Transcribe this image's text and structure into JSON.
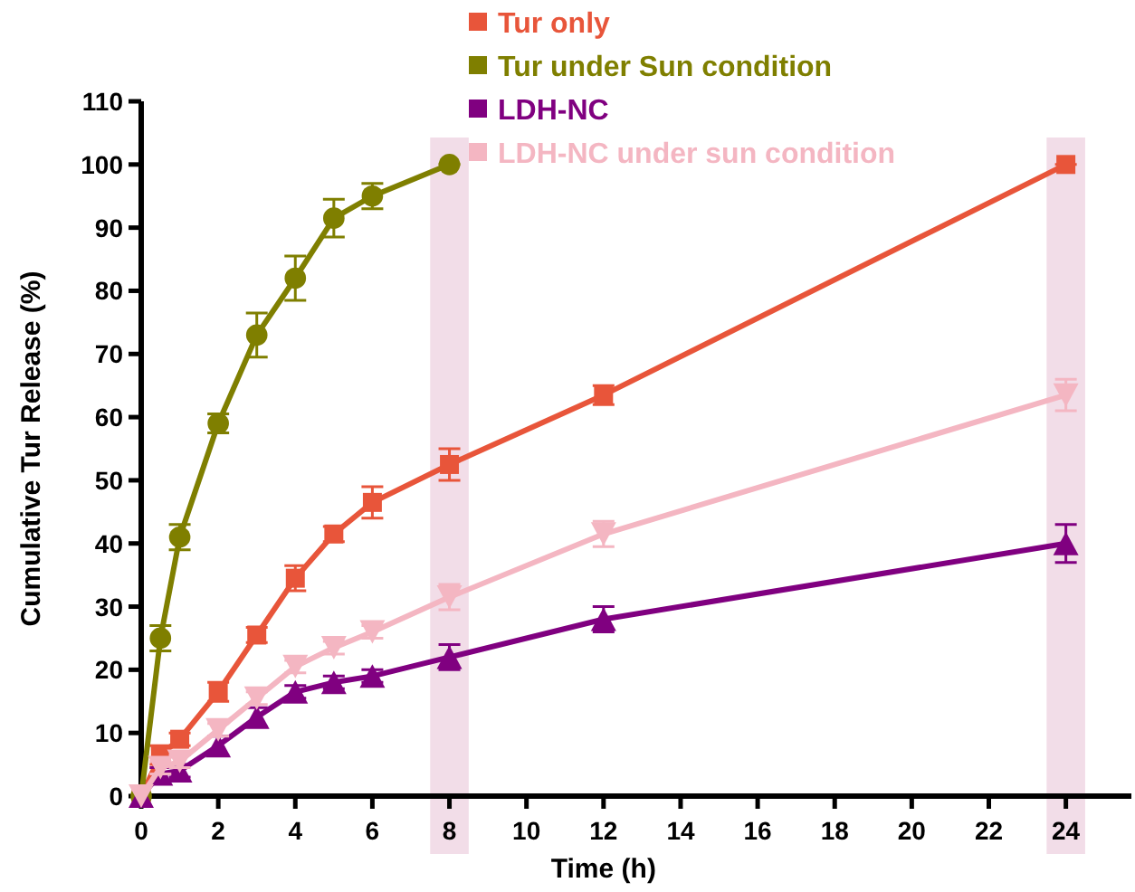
{
  "chart_data": {
    "type": "line",
    "xlabel": "Time (h)",
    "ylabel": "Cumulative Tur Release (%)",
    "xlim": [
      0,
      25.7
    ],
    "xticks": [
      0,
      2,
      4,
      6,
      8,
      10,
      12,
      14,
      16,
      18,
      20,
      22,
      24
    ],
    "ylim": [
      0,
      110
    ],
    "yticks": [
      0,
      10,
      20,
      30,
      40,
      50,
      60,
      70,
      80,
      90,
      100,
      110
    ],
    "grid": false,
    "legend": "top right",
    "line_style": "solid",
    "bands": [
      {
        "axis": "x",
        "from": 7.5,
        "to": 8.5,
        "color": "#f2dde8"
      },
      {
        "axis": "x",
        "from": 23.5,
        "to": 24.5,
        "color": "#f2dde8"
      }
    ],
    "series": [
      {
        "name": "Tur only",
        "color": "#e8553a",
        "marker": "square",
        "x": [
          0,
          0.5,
          1,
          2,
          3,
          4,
          5,
          6,
          8,
          12,
          24
        ],
        "values": [
          0,
          6.5,
          9,
          16.5,
          25.5,
          34.5,
          41.5,
          46.5,
          52.5,
          63.5,
          100
        ],
        "errors": [
          null,
          1.5,
          1,
          1.5,
          1.2,
          2,
          1.2,
          2.5,
          2.5,
          1.5,
          0
        ]
      },
      {
        "name": "Tur under Sun condition",
        "color": "#7f7f00",
        "marker": "circle",
        "x": [
          0,
          0.5,
          1,
          2,
          3,
          4,
          5,
          6,
          8
        ],
        "values": [
          0,
          25,
          41,
          59,
          73,
          82,
          91.5,
          95,
          100
        ],
        "errors": [
          null,
          2,
          2,
          1.5,
          3.5,
          3.5,
          3,
          2,
          0
        ]
      },
      {
        "name": "LDH-NC",
        "color": "#800080",
        "marker": "triangle",
        "x": [
          0,
          0.5,
          1,
          2,
          3,
          4,
          5,
          6,
          8,
          12,
          24
        ],
        "values": [
          0,
          3.5,
          4,
          8,
          12.5,
          16.5,
          18,
          19,
          22,
          28,
          40
        ],
        "errors": [
          null,
          1,
          1,
          1.5,
          1.5,
          1,
          1,
          1,
          2,
          2,
          3
        ]
      },
      {
        "name": "LDH-NC under sun condition",
        "color": "#f4b6c2",
        "marker": "triangle-down",
        "x": [
          0,
          0.5,
          1,
          2,
          3,
          4,
          5,
          6,
          8,
          12,
          24
        ],
        "values": [
          0,
          4.5,
          5.5,
          10.5,
          15.5,
          20.5,
          23.5,
          26,
          31.5,
          41.5,
          63.5
        ],
        "errors": [
          null,
          1,
          1,
          1,
          1,
          1,
          1,
          1,
          2,
          2,
          2.5
        ]
      }
    ]
  }
}
